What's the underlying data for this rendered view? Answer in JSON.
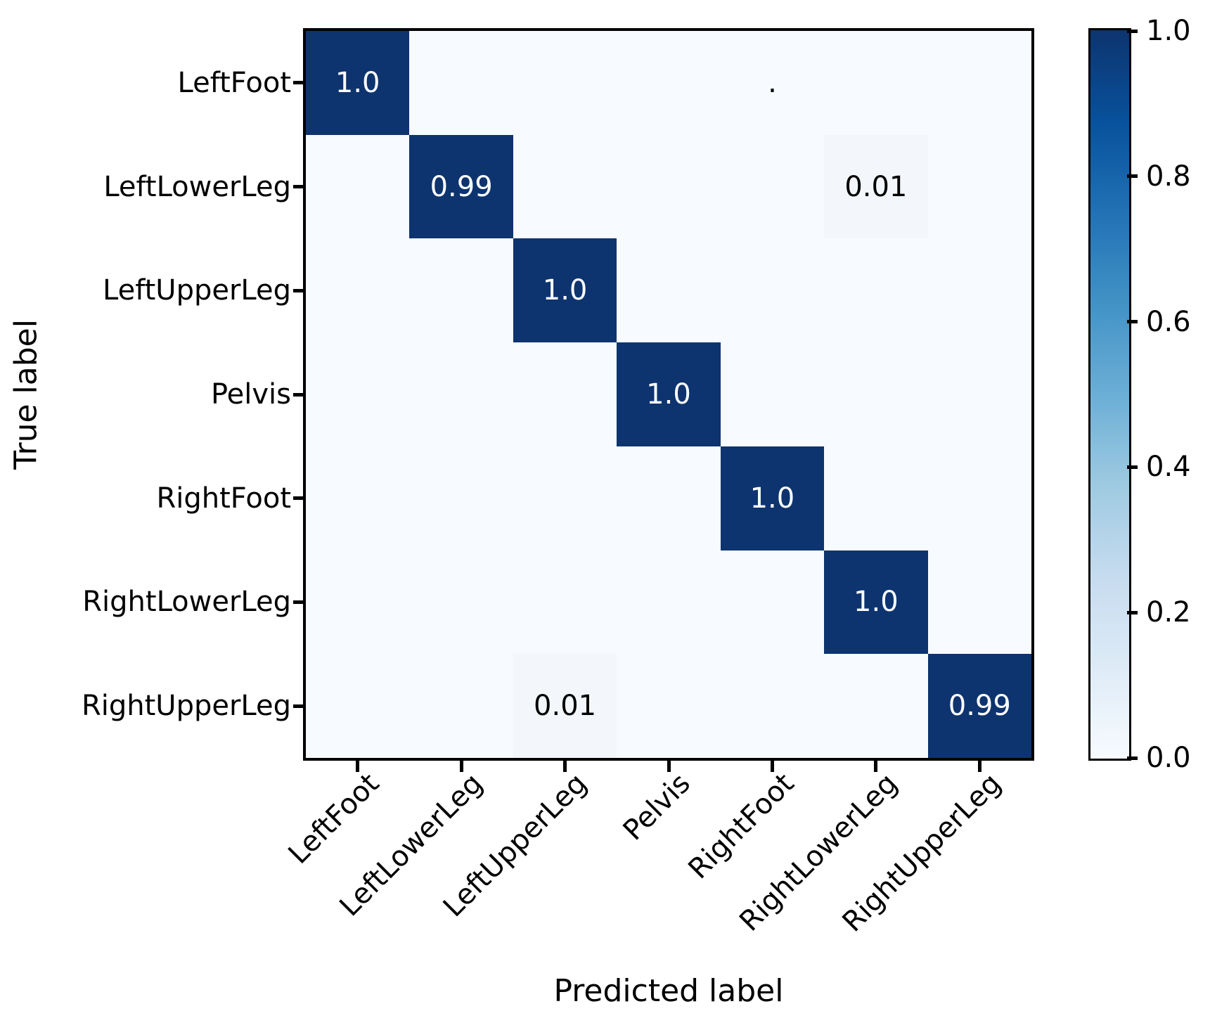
{
  "chart_data": {
    "type": "heatmap",
    "subtype": "confusion-matrix",
    "xlabel": "Predicted label",
    "ylabel": "True label",
    "x_categories": [
      "LeftFoot",
      "LeftLowerLeg",
      "LeftUpperLeg",
      "Pelvis",
      "RightFoot",
      "RightLowerLeg",
      "RightUpperLeg"
    ],
    "y_categories": [
      "LeftFoot",
      "LeftLowerLeg",
      "LeftUpperLeg",
      "Pelvis",
      "RightFoot",
      "RightLowerLeg",
      "RightUpperLeg"
    ],
    "values": [
      [
        1.0,
        0,
        0,
        0,
        0,
        0,
        0
      ],
      [
        0,
        0.99,
        0,
        0,
        0,
        0.01,
        0
      ],
      [
        0,
        0,
        1.0,
        0,
        0,
        0,
        0
      ],
      [
        0,
        0,
        0,
        1.0,
        0,
        0,
        0
      ],
      [
        0,
        0,
        0,
        0,
        1.0,
        0,
        0
      ],
      [
        0,
        0,
        0,
        0,
        0,
        1.0,
        0
      ],
      [
        0,
        0,
        0.01,
        0,
        0,
        0,
        0.99
      ]
    ],
    "cell_labels": [
      [
        "1.0",
        "",
        "",
        "",
        ".",
        "",
        ""
      ],
      [
        "",
        "0.99",
        "",
        "",
        "",
        "0.01",
        ""
      ],
      [
        "",
        "",
        "1.0",
        "",
        "",
        "",
        ""
      ],
      [
        "",
        "",
        "",
        "1.0",
        "",
        "",
        ""
      ],
      [
        "",
        "",
        "",
        "",
        "1.0",
        "",
        ""
      ],
      [
        "",
        "",
        "",
        "",
        "",
        "1.0",
        ""
      ],
      [
        "",
        "",
        "0.01",
        "",
        "",
        "",
        "0.99"
      ]
    ],
    "value_range": [
      0.0,
      1.0
    ],
    "colormap": "Blues",
    "colormap_stops": [
      "#f7fbff",
      "#deebf7",
      "#c6dbef",
      "#9ecae1",
      "#6baed6",
      "#4292c6",
      "#2171b5",
      "#08519c",
      "#0d346e"
    ],
    "colors": {
      "cell_max": "#0d346e",
      "cell_min": "#f7fbff",
      "cell_low_tint": "#f3f7fb",
      "text_on_dark": "#ffffff",
      "text_on_light": "#000000",
      "spine": "#000000"
    },
    "colorbar": {
      "tick_labels": [
        "1.0",
        "0.8",
        "0.6",
        "0.4",
        "0.2",
        "0.0"
      ],
      "tick_values": [
        1.0,
        0.8,
        0.6,
        0.4,
        0.2,
        0.0
      ],
      "position": "right"
    },
    "legend_position": "none",
    "grid": false
  }
}
